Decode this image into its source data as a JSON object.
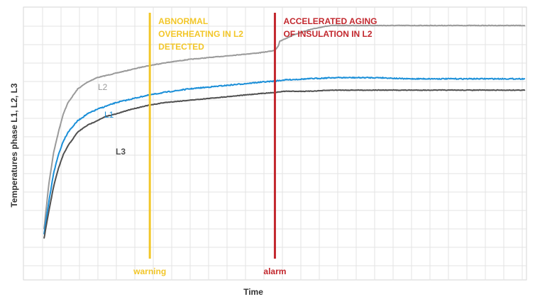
{
  "chart_data": {
    "type": "line",
    "title": "",
    "xlabel": "Time",
    "ylabel": "Temperatures phase L1, L2, L3",
    "xlim": [
      0,
      100
    ],
    "ylim": [
      0,
      100
    ],
    "grid": true,
    "series": [
      {
        "name": "L2",
        "color": "#9a9a9a",
        "x": [
          0,
          1,
          2,
          3,
          4,
          5,
          7,
          9,
          11,
          13,
          15,
          18,
          21,
          25,
          30,
          35,
          40,
          45,
          48,
          48.7,
          49,
          50,
          52,
          55,
          58,
          60,
          62,
          65,
          70,
          75,
          80,
          85,
          90,
          95,
          100
        ],
        "y": [
          5,
          25,
          39,
          48,
          56,
          61,
          67,
          70,
          72,
          73,
          74,
          75.5,
          77,
          78.5,
          80,
          81,
          82,
          83,
          84,
          86,
          88,
          89,
          91,
          93,
          94.5,
          95,
          95,
          95,
          95,
          95,
          95,
          95,
          95,
          95,
          95
        ]
      },
      {
        "name": "L1",
        "color": "#1b8fd8",
        "x": [
          0,
          1,
          2,
          3,
          4,
          5,
          7,
          9,
          11,
          13,
          15,
          18,
          21,
          25,
          30,
          35,
          40,
          45,
          48,
          50,
          55,
          60,
          65,
          70,
          75,
          80,
          85,
          90,
          95,
          100
        ],
        "y": [
          3,
          17,
          30,
          38,
          44,
          48,
          53,
          56,
          58,
          59.5,
          61,
          62.5,
          64,
          65.5,
          67,
          68,
          69,
          70,
          70.5,
          71,
          71.5,
          72,
          72,
          72,
          71.5,
          71.5,
          71.5,
          71.5,
          71.5,
          71.5
        ]
      },
      {
        "name": "L3",
        "color": "#505050",
        "x": [
          0,
          1,
          2,
          3,
          4,
          5,
          7,
          9,
          11,
          13,
          15,
          18,
          21,
          25,
          30,
          35,
          40,
          45,
          48,
          50,
          55,
          60,
          65,
          70,
          75,
          80,
          85,
          90,
          95,
          100
        ],
        "y": [
          1,
          13,
          24,
          32,
          38,
          42,
          48,
          51,
          53,
          55,
          56,
          58,
          59.5,
          61,
          62,
          63,
          64,
          65,
          65.5,
          66,
          66,
          66.5,
          66.5,
          66.5,
          66.5,
          66.5,
          66.5,
          66.5,
          66.5,
          66.5
        ]
      }
    ],
    "markers": [
      {
        "label": "warning",
        "x": 22,
        "color": "#f2c628",
        "annotation": [
          "ABNORMAL",
          "OVERHEATING IN L2",
          "DETECTED"
        ]
      },
      {
        "label": "alarm",
        "x": 48,
        "color": "#c2272d",
        "annotation": [
          "ACCELERATED AGING",
          "OF INSULATION IN L2"
        ]
      }
    ]
  }
}
